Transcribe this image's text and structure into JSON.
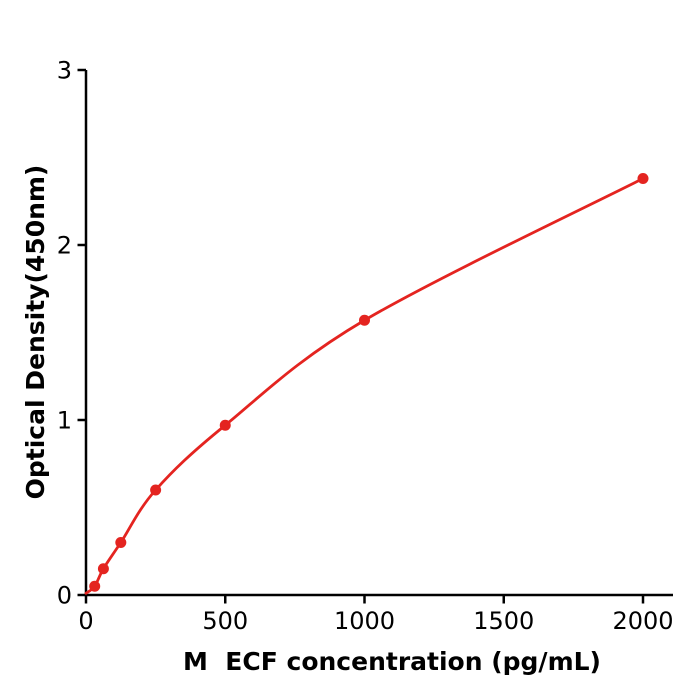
{
  "chart_data": {
    "type": "line",
    "title": "",
    "xlabel": "M  ECF concentration (pg/mL)",
    "ylabel": "Optical Density(450nm)",
    "x": [
      31.25,
      62.5,
      125,
      250,
      500,
      1000,
      2000
    ],
    "y": [
      0.05,
      0.15,
      0.3,
      0.6,
      0.97,
      1.57,
      2.38
    ],
    "curve_start": {
      "x": 0,
      "y": 0.01
    },
    "xticks": [
      "0",
      "500",
      "1000",
      "1500",
      "2000"
    ],
    "xtick_values": [
      0,
      500,
      1000,
      1500,
      2000
    ],
    "yticks": [
      "0",
      "1",
      "2",
      "3"
    ],
    "ytick_values": [
      0,
      1,
      2,
      3
    ],
    "xlim": [
      0,
      2110
    ],
    "ylim": [
      0,
      3
    ],
    "grid": false,
    "legend_position": "none",
    "colors": {
      "line": "#e42420",
      "marker": "#e42420",
      "axis": "#000000",
      "background": "#ffffff"
    }
  }
}
